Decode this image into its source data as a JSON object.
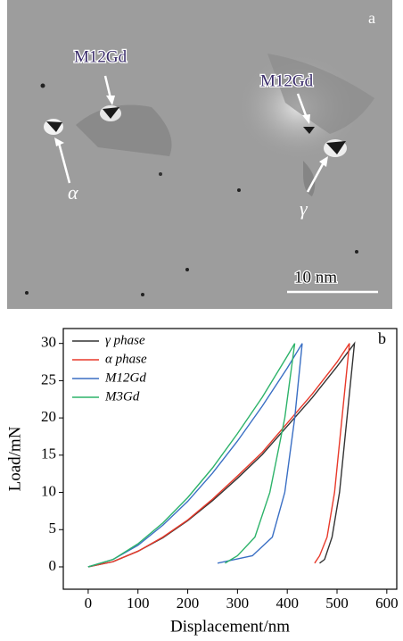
{
  "chart_data": [
    {
      "type": "image",
      "panel_label": "a",
      "annotations": [
        "M12Gd",
        "M12Gd",
        "α",
        "γ"
      ],
      "scale_bar": "10 nm"
    },
    {
      "type": "line",
      "panel_label": "b",
      "xlabel": "Displacement/nm",
      "ylabel": "Load/mN",
      "xlim": [
        -50,
        620
      ],
      "ylim": [
        -3,
        32
      ],
      "xticks": [
        0,
        100,
        200,
        300,
        400,
        500,
        600
      ],
      "yticks": [
        0,
        5,
        10,
        15,
        20,
        25,
        30
      ],
      "legend": "upper left",
      "series": [
        {
          "name": "γ phase",
          "color": "#333333",
          "x": [
            0,
            50,
            100,
            150,
            200,
            250,
            300,
            350,
            400,
            450,
            500,
            535,
            520,
            505,
            490,
            475,
            465
          ],
          "values": [
            0,
            0.7,
            2.1,
            3.9,
            6.2,
            8.9,
            11.9,
            15.1,
            18.9,
            22.7,
            26.9,
            30,
            20,
            10,
            4,
            1,
            0.5
          ]
        },
        {
          "name": "α phase",
          "color": "#e8392a",
          "x": [
            0,
            50,
            100,
            150,
            200,
            250,
            300,
            350,
            400,
            450,
            500,
            525,
            510,
            495,
            480,
            465,
            455
          ],
          "values": [
            0,
            0.7,
            2.1,
            4.0,
            6.3,
            9.1,
            12.2,
            15.4,
            19.3,
            23.2,
            27.5,
            30,
            20,
            10,
            4,
            1.5,
            0.5
          ]
        },
        {
          "name": "M12Gd",
          "color": "#3a6fc4",
          "x": [
            0,
            50,
            100,
            150,
            200,
            250,
            300,
            350,
            400,
            430,
            415,
            395,
            370,
            330,
            260
          ],
          "values": [
            0,
            1.0,
            2.9,
            5.6,
            8.8,
            12.6,
            16.9,
            21.6,
            26.7,
            30,
            20,
            10,
            4,
            1.5,
            0.5
          ]
        },
        {
          "name": "M3Gd",
          "color": "#2db36a",
          "x": [
            0,
            50,
            100,
            150,
            200,
            250,
            300,
            350,
            400,
            415,
            395,
            365,
            335,
            300,
            275
          ],
          "values": [
            0,
            1.0,
            3.1,
            5.9,
            9.3,
            13.3,
            17.9,
            22.8,
            28.3,
            30,
            20,
            10,
            4,
            1.5,
            0.5
          ]
        }
      ]
    }
  ]
}
